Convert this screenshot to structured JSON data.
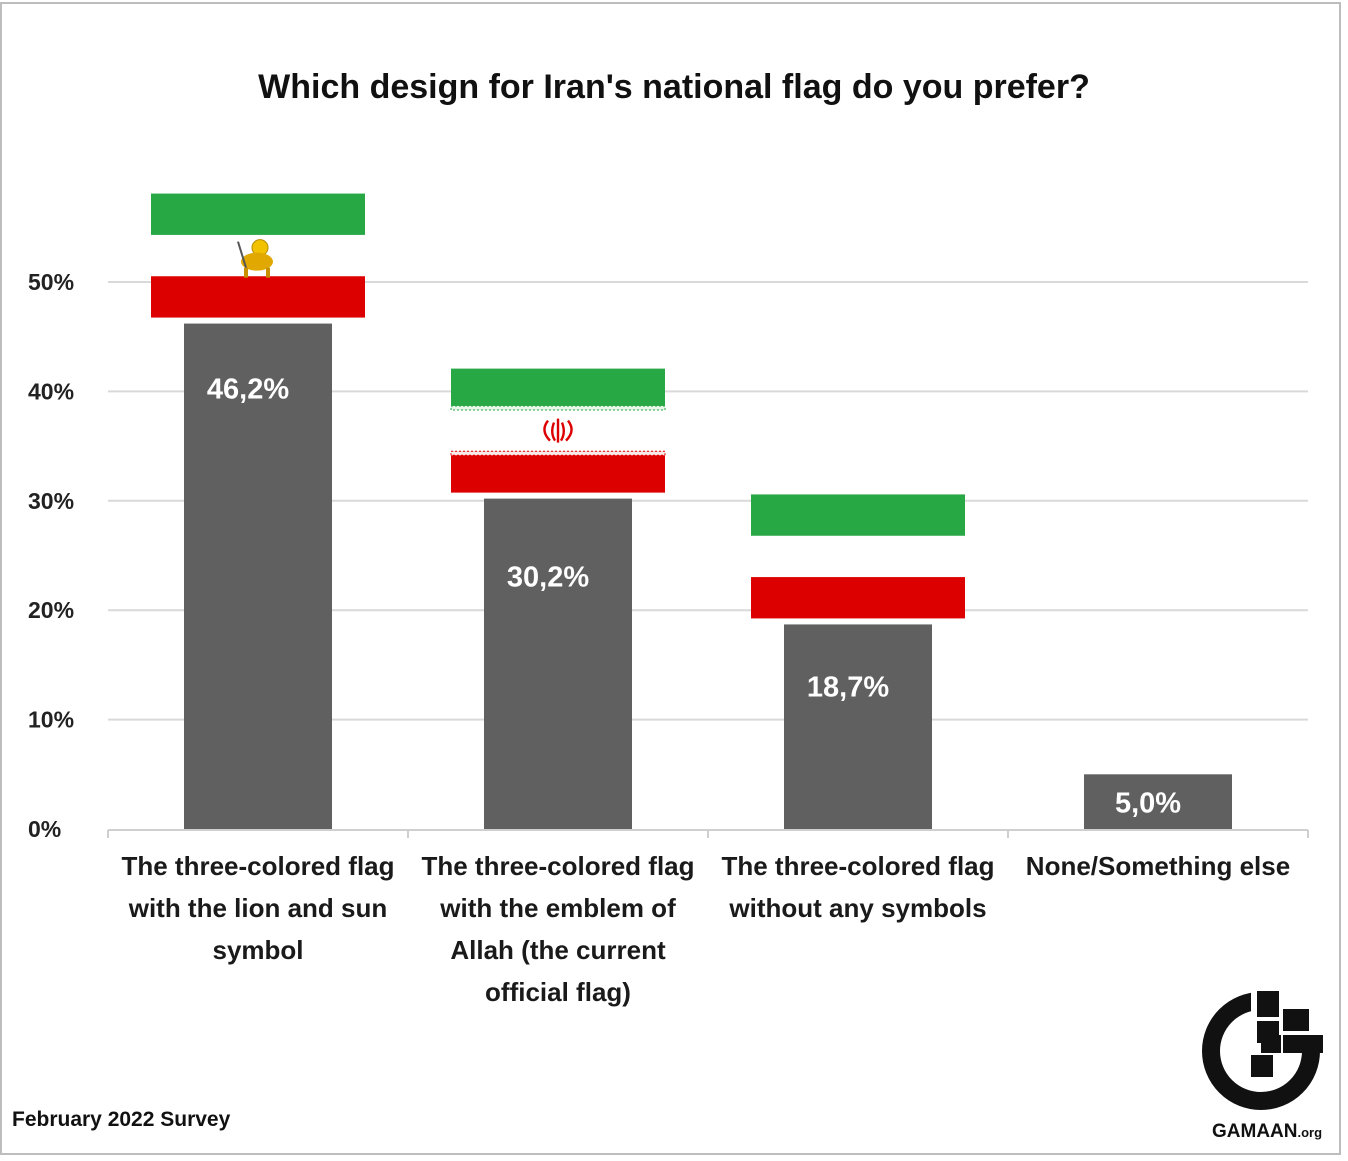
{
  "chart_data": {
    "type": "bar",
    "title": "Which design for Iran's national flag do you prefer?",
    "categories": [
      "The three-colored flag with the lion and sun symbol",
      "The three-colored flag with the emblem of Allah (the current official flag)",
      "The three-colored flag without any symbols",
      "None/Something else"
    ],
    "values": [
      46.2,
      30.2,
      18.7,
      5.0
    ],
    "data_labels": [
      "46,2%",
      "30,2%",
      "18,7%",
      "5,0%"
    ],
    "ylim": [
      0,
      50
    ],
    "yticks": [
      "0%",
      "10%",
      "20%",
      "30%",
      "40%",
      "50%"
    ],
    "xlabel": "",
    "ylabel": "",
    "grid": true,
    "bar_color": "#606060",
    "flag_images": [
      "lion-and-sun",
      "allah-emblem",
      "plain",
      "none"
    ],
    "flag_colors": {
      "green": "#28a745",
      "red": "#dd0000",
      "white": "#ffffff"
    }
  },
  "footnote": "February 2022 Survey",
  "logo": {
    "name": "GAMAAN",
    "suffix": ".org"
  }
}
